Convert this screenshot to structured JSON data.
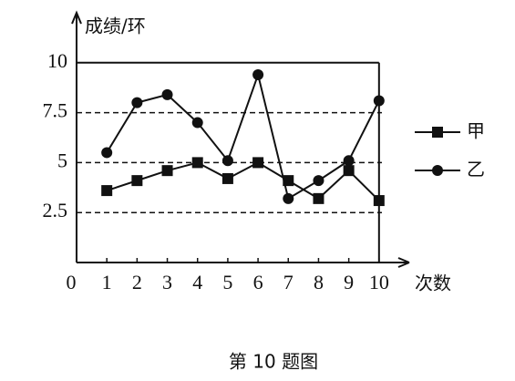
{
  "chart_data": {
    "type": "line",
    "caption": "第 10 题图",
    "y_label": "成绩/环",
    "x_label": "次数",
    "x": [
      1,
      2,
      3,
      4,
      5,
      6,
      7,
      8,
      9,
      10
    ],
    "series": [
      {
        "name": "甲",
        "color": "#111111",
        "marker": "square",
        "values": [
          3.6,
          4.1,
          4.6,
          5,
          4.2,
          5,
          4.1,
          3.2,
          4.6,
          3.1
        ]
      },
      {
        "name": "乙",
        "color": "#111111",
        "marker": "circle",
        "values": [
          5.5,
          8,
          8.4,
          7,
          5.1,
          9.4,
          3.2,
          4.1,
          5.1,
          8.1
        ]
      }
    ],
    "xlim": [
      0,
      11
    ],
    "ylim": [
      0,
      12.5
    ],
    "xticks": [
      0,
      1,
      2,
      3,
      4,
      5,
      6,
      7,
      8,
      9,
      10
    ],
    "yticks": [
      2.5,
      5,
      7.5,
      10
    ],
    "grid": "dashed",
    "legend": "right"
  }
}
